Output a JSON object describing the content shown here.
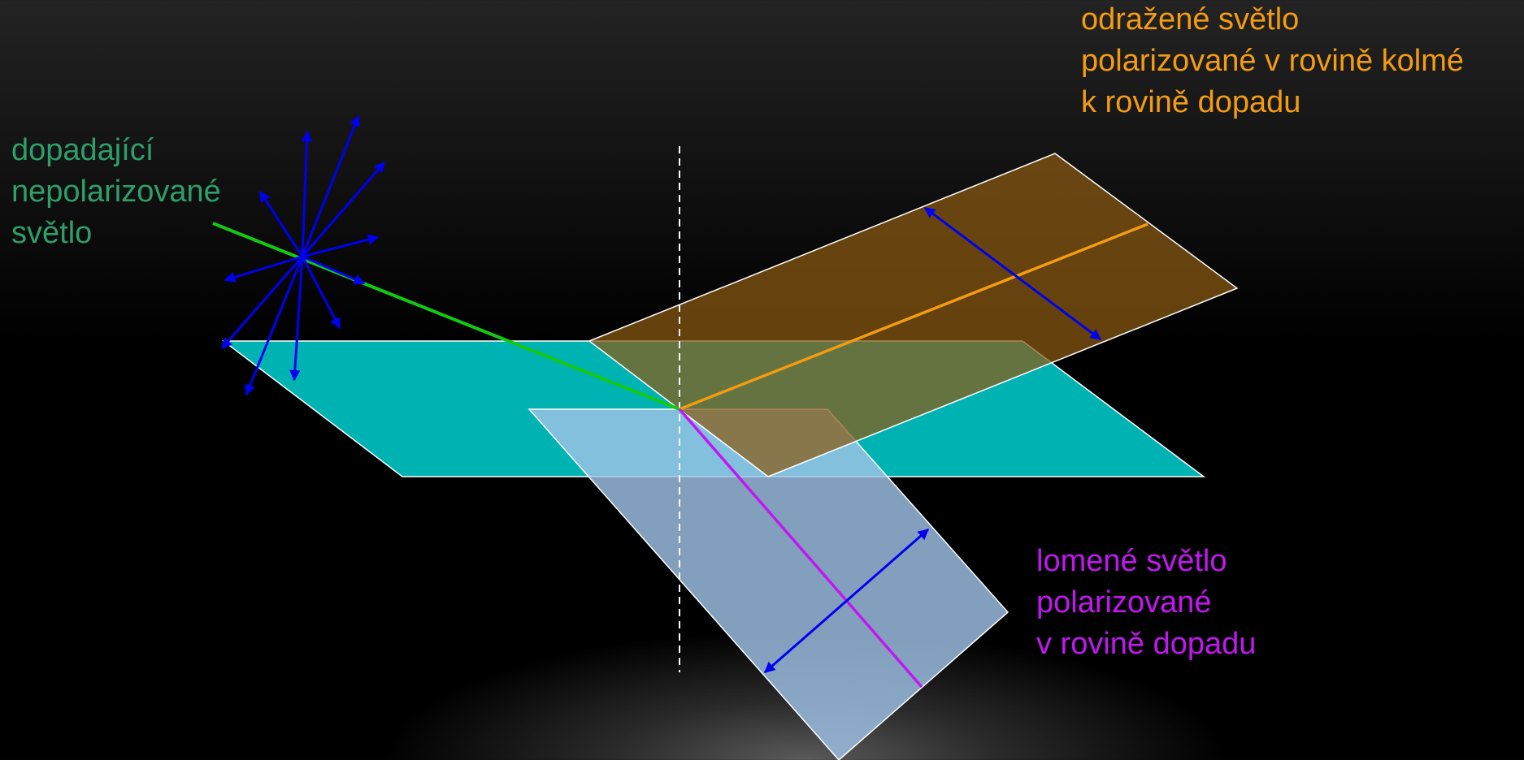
{
  "labels": {
    "incident": {
      "lines": [
        "dopadající",
        "nepolarizované",
        "světlo"
      ],
      "color": "#2e9e6a"
    },
    "reflected": {
      "lines": [
        "odražené světlo",
        "polarizované v rovině kolmé",
        "k rovině dopadu"
      ],
      "color": "#f39c12"
    },
    "refracted": {
      "lines": [
        "lomené světlo",
        "polarizované",
        "v rovině dopadu"
      ],
      "color": "#c118f0"
    }
  },
  "colors": {
    "interface_plane": "#00b3b3",
    "reflection_plane": "#5e3a06",
    "refraction_plane": "#8ea7c2",
    "incident_ray": "#14c814",
    "reflected_ray": "#f39c12",
    "refracted_ray": "#c118f0",
    "polarization_arrows": "#0000ee",
    "normal": "#ffffff"
  },
  "icons": {
    "polarization_star": "unpolarized-light-star-icon",
    "reflected_polarization": "double-arrow-icon",
    "refracted_polarization": "double-arrow-icon"
  }
}
